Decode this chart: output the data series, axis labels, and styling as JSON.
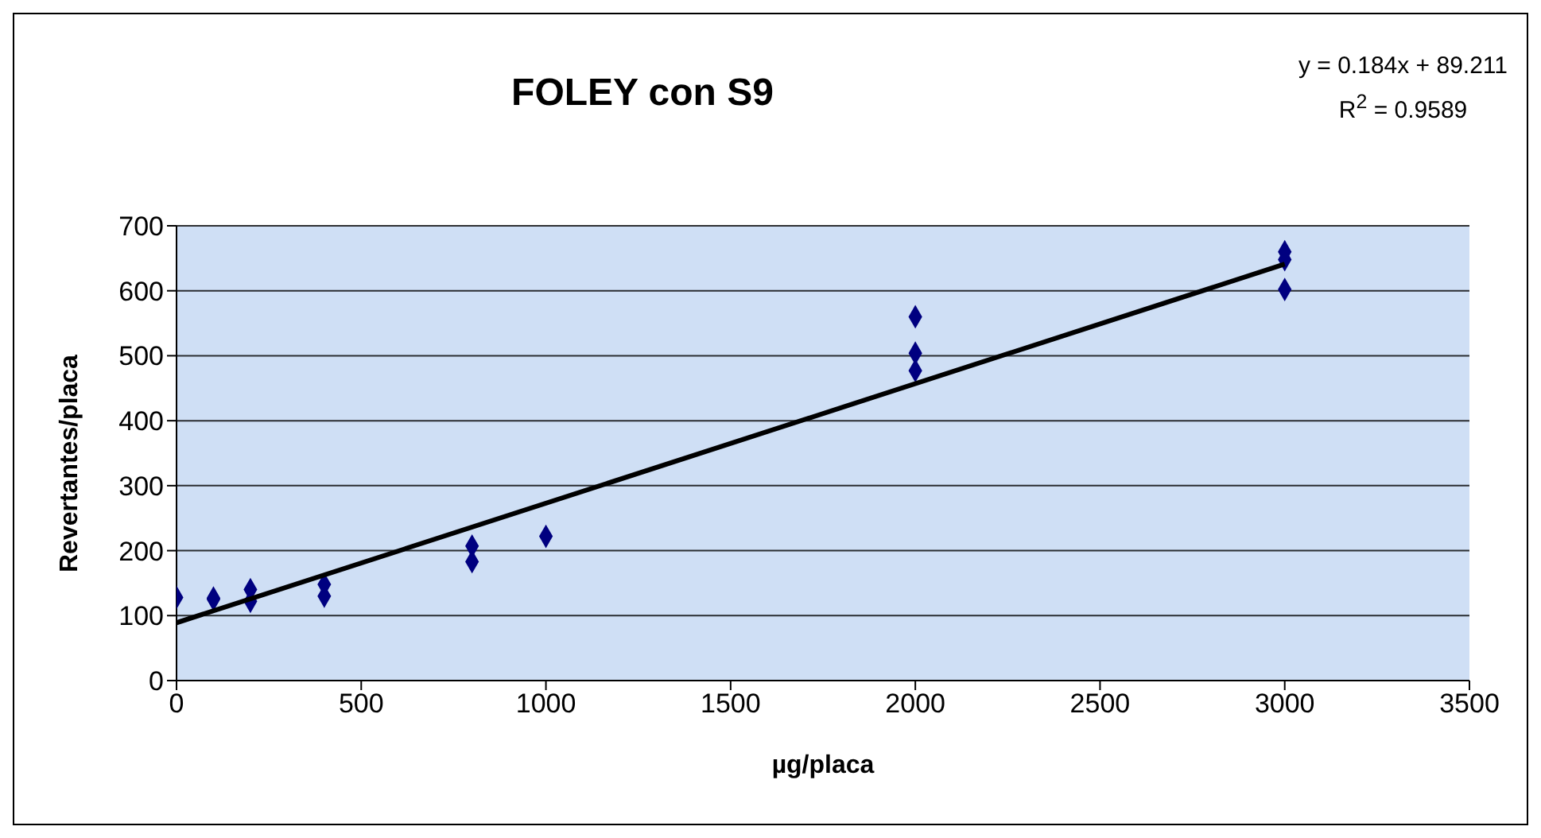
{
  "chart_data": {
    "type": "scatter",
    "title": "FOLEY con S9",
    "xlabel": "µg/placa",
    "ylabel": "Revertantes/placa",
    "annotations": [
      "y = 0.184x + 89.211",
      "R$^{2}$ = 0.9589"
    ],
    "xlim": [
      0,
      3500
    ],
    "xticks": [
      0,
      500,
      1000,
      1500,
      2000,
      2500,
      3000,
      3500
    ],
    "ylim": [
      0,
      700
    ],
    "yticks": [
      0,
      100,
      200,
      300,
      400,
      500,
      600,
      700
    ],
    "grid": "y",
    "marker": "diamond",
    "series": [
      {
        "color": "#000080",
        "x": [
          0,
          100,
          100,
          200,
          200,
          400,
          400,
          800,
          800,
          1000,
          2000,
          2000,
          2000,
          3000,
          3000,
          3000
        ],
        "values": [
          128,
          127,
          125,
          140,
          122,
          148,
          130,
          207,
          183,
          222,
          560,
          504,
          477,
          660,
          648,
          602
        ]
      },
      {
        "type": "line",
        "color": "#000000",
        "marker": "none",
        "x": [
          0,
          3000
        ],
        "values": [
          89,
          641
        ]
      }
    ]
  }
}
